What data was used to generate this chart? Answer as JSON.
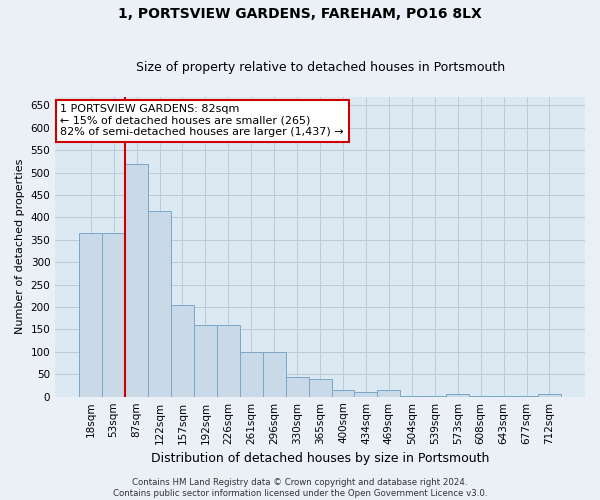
{
  "title": "1, PORTSVIEW GARDENS, FAREHAM, PO16 8LX",
  "subtitle": "Size of property relative to detached houses in Portsmouth",
  "xlabel": "Distribution of detached houses by size in Portsmouth",
  "ylabel": "Number of detached properties",
  "categories": [
    "18sqm",
    "53sqm",
    "87sqm",
    "122sqm",
    "157sqm",
    "192sqm",
    "226sqm",
    "261sqm",
    "296sqm",
    "330sqm",
    "365sqm",
    "400sqm",
    "434sqm",
    "469sqm",
    "504sqm",
    "539sqm",
    "573sqm",
    "608sqm",
    "643sqm",
    "677sqm",
    "712sqm"
  ],
  "bar_heights": [
    365,
    365,
    520,
    415,
    205,
    160,
    160,
    100,
    100,
    45,
    40,
    15,
    10,
    15,
    2,
    2,
    5,
    2,
    2,
    2,
    5
  ],
  "bar_color": "#c9d9e8",
  "bar_edge_color": "#7aa8c8",
  "vline_x": 2.0,
  "vline_color": "#cc0000",
  "annotation_text": "1 PORTSVIEW GARDENS: 82sqm\n← 15% of detached houses are smaller (265)\n82% of semi-detached houses are larger (1,437) →",
  "annotation_box_color": "#ffffff",
  "annotation_border_color": "#cc0000",
  "ylim": [
    0,
    670
  ],
  "yticks": [
    0,
    50,
    100,
    150,
    200,
    250,
    300,
    350,
    400,
    450,
    500,
    550,
    600,
    650
  ],
  "grid_color": "#b8ccda",
  "plot_bg_color": "#dce8f2",
  "fig_bg_color": "#eaf0f6",
  "footer_text": "Contains HM Land Registry data © Crown copyright and database right 2024.\nContains public sector information licensed under the Open Government Licence v3.0.",
  "title_fontsize": 10,
  "subtitle_fontsize": 9,
  "ylabel_fontsize": 8,
  "xlabel_fontsize": 9,
  "tick_fontsize": 7.5,
  "annot_fontsize": 8
}
